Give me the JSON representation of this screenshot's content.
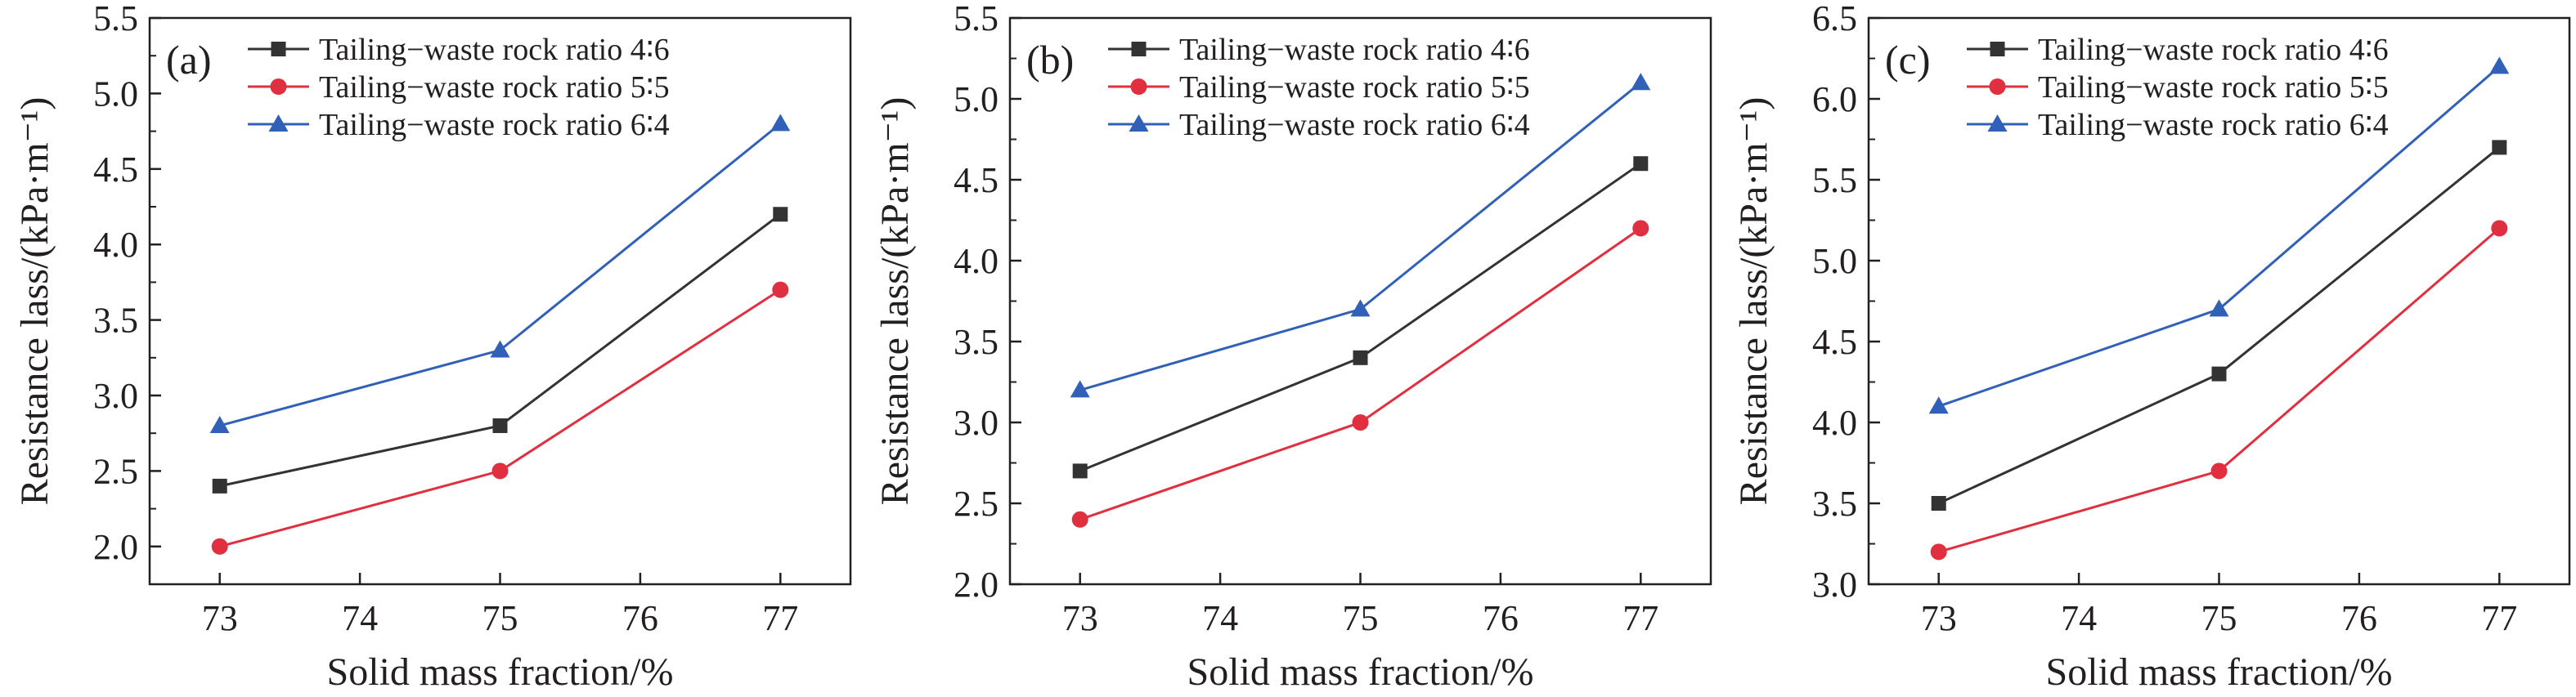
{
  "chart_data": [
    {
      "type": "line",
      "panel_label": "(a)",
      "xlabel": "Solid mass fraction/%",
      "ylabel": "Resistance lass/(kPa·m⁻¹)",
      "x": [
        73,
        75,
        77
      ],
      "xticks": [
        "73",
        "74",
        "75",
        "76",
        "77"
      ],
      "xlim": [
        72.5,
        77.5
      ],
      "ylim": [
        1.75,
        5.5
      ],
      "yticks": [
        "2.0",
        "2.5",
        "3.0",
        "3.5",
        "4.0",
        "4.5",
        "5.0",
        "5.5"
      ],
      "legend_position": "top-left",
      "grid": false,
      "series": [
        {
          "name": "Tailing−waste rock ratio 4∶6",
          "values": [
            2.4,
            2.8,
            4.2
          ],
          "color": "#333333",
          "marker": "square"
        },
        {
          "name": "Tailing−waste rock ratio 5∶5",
          "values": [
            2.0,
            2.5,
            3.7
          ],
          "color": "#e03040",
          "marker": "circle"
        },
        {
          "name": "Tailing−waste rock ratio 6∶4",
          "values": [
            2.8,
            3.3,
            4.8
          ],
          "color": "#3060b8",
          "marker": "triangle"
        }
      ]
    },
    {
      "type": "line",
      "panel_label": "(b)",
      "xlabel": "Solid mass fraction/%",
      "ylabel": "Resistance lass/(kPa·m⁻¹)",
      "x": [
        73,
        75,
        77
      ],
      "xticks": [
        "73",
        "74",
        "75",
        "76",
        "77"
      ],
      "xlim": [
        72.5,
        77.5
      ],
      "ylim": [
        2.0,
        5.5
      ],
      "yticks": [
        "2.0",
        "2.5",
        "3.0",
        "3.5",
        "4.0",
        "4.5",
        "5.0",
        "5.5"
      ],
      "legend_position": "top-left",
      "grid": false,
      "series": [
        {
          "name": "Tailing−waste rock ratio 4∶6",
          "values": [
            2.7,
            3.4,
            4.6
          ],
          "color": "#333333",
          "marker": "square"
        },
        {
          "name": "Tailing−waste rock ratio 5∶5",
          "values": [
            2.4,
            3.0,
            4.2
          ],
          "color": "#e03040",
          "marker": "circle"
        },
        {
          "name": "Tailing−waste rock ratio 6∶4",
          "values": [
            3.2,
            3.7,
            5.1
          ],
          "color": "#3060b8",
          "marker": "triangle"
        }
      ]
    },
    {
      "type": "line",
      "panel_label": "(c)",
      "xlabel": "Solid mass fraction/%",
      "ylabel": "Resistance lass/(kPa·m⁻¹)",
      "x": [
        73,
        75,
        77
      ],
      "xticks": [
        "73",
        "74",
        "75",
        "76",
        "77"
      ],
      "xlim": [
        72.5,
        77.5
      ],
      "ylim": [
        3.0,
        6.5
      ],
      "yticks": [
        "3.0",
        "3.5",
        "4.0",
        "4.5",
        "5.0",
        "5.5",
        "6.0",
        "6.5"
      ],
      "legend_position": "top-left",
      "grid": false,
      "series": [
        {
          "name": "Tailing−waste rock ratio 4∶6",
          "values": [
            3.5,
            4.3,
            5.7
          ],
          "color": "#333333",
          "marker": "square"
        },
        {
          "name": "Tailing−waste rock ratio 5∶5",
          "values": [
            3.2,
            3.7,
            5.2
          ],
          "color": "#e03040",
          "marker": "circle"
        },
        {
          "name": "Tailing−waste rock ratio 6∶4",
          "values": [
            4.1,
            4.7,
            6.2
          ],
          "color": "#3060b8",
          "marker": "triangle"
        }
      ]
    }
  ]
}
